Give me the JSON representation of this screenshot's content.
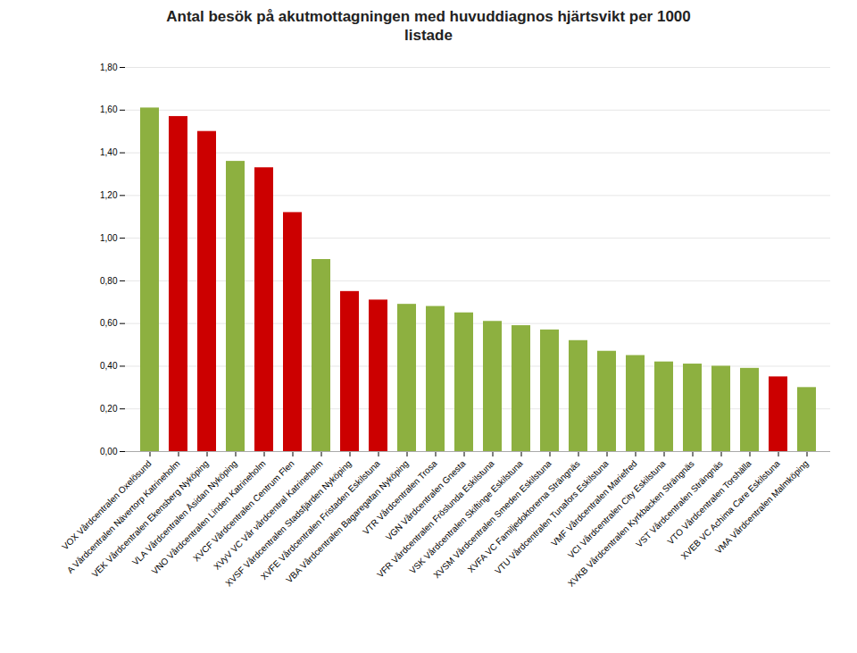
{
  "chart_data": {
    "type": "bar",
    "title": "Antal besök på akutmottagningen med huvuddiagnos hjärtsvikt per 1000\nlistade",
    "categories": [
      "VOX Vårdcentralen Oxelösund",
      "A Vårdcentralen Nävertorp Katrineholm",
      "VEK Vårdcentralen Ekensberg Nyköping",
      "VLA Vårdcentralen Åsidan Nyköping",
      "VNO Vårdcentralen Linden Katrineholm",
      "XVCF Vårdcentralen Centrum Flen",
      "XVyV VC Vår vårdcentral Katrineholm",
      "XVSF Vårdcentralen Stadsfjärden Nyköping",
      "XVFE Vårdcentralen Fristaden Eskilstuna",
      "VBA Vårdcentralen Bagaregatan Nyköping",
      "VTR Vårdcentralen Trosa",
      "VGN Vårdcentralen Gnesta",
      "VFR Vårdcentralen Fröslunda Eskilstuna",
      "VSK Vårdcentralen Skiftinge Eskilstuna",
      "XVSM Vårdcentralen Smeden Eskilstuna",
      "XVFA VC Familjedoktorerna Strängnäs",
      "VTU Vårdcentralen Tunafors Eskilstuna",
      "VMF Vårdcentralen Mariefred",
      "VCI Vårdcentralen City Eskilstuna",
      "XVKB Vårdcentralen Kyrkbacken Strängnäs",
      "VST Vårdcentralen Strängnäs",
      "VTO Vårdcentralen Torshälla",
      "XVEB VC Achima Care Eskilstuna",
      "VMA Vårdcentralen Malmköping"
    ],
    "values": [
      1.61,
      1.57,
      1.5,
      1.36,
      1.33,
      1.12,
      0.9,
      0.75,
      0.71,
      0.69,
      0.68,
      0.65,
      0.61,
      0.59,
      0.57,
      0.52,
      0.47,
      0.45,
      0.42,
      0.41,
      0.4,
      0.39,
      0.35,
      0.3
    ],
    "colors": [
      "#8db040",
      "#cc0000",
      "#cc0000",
      "#8db040",
      "#cc0000",
      "#cc0000",
      "#8db040",
      "#cc0000",
      "#cc0000",
      "#8db040",
      "#8db040",
      "#8db040",
      "#8db040",
      "#8db040",
      "#8db040",
      "#8db040",
      "#8db040",
      "#8db040",
      "#8db040",
      "#8db040",
      "#8db040",
      "#8db040",
      "#cc0000",
      "#8db040"
    ],
    "ylim": [
      0,
      1.8
    ],
    "yticks": [
      {
        "value": 0.0,
        "label": "0,00"
      },
      {
        "value": 0.2,
        "label": "0,20"
      },
      {
        "value": 0.4,
        "label": "0,40"
      },
      {
        "value": 0.6,
        "label": "0,60"
      },
      {
        "value": 0.8,
        "label": "0,80"
      },
      {
        "value": 1.0,
        "label": "1,00"
      },
      {
        "value": 1.2,
        "label": "1,20"
      },
      {
        "value": 1.4,
        "label": "1,40"
      },
      {
        "value": 1.6,
        "label": "1,60"
      },
      {
        "value": 1.8,
        "label": "1,80"
      }
    ],
    "grid": true
  }
}
